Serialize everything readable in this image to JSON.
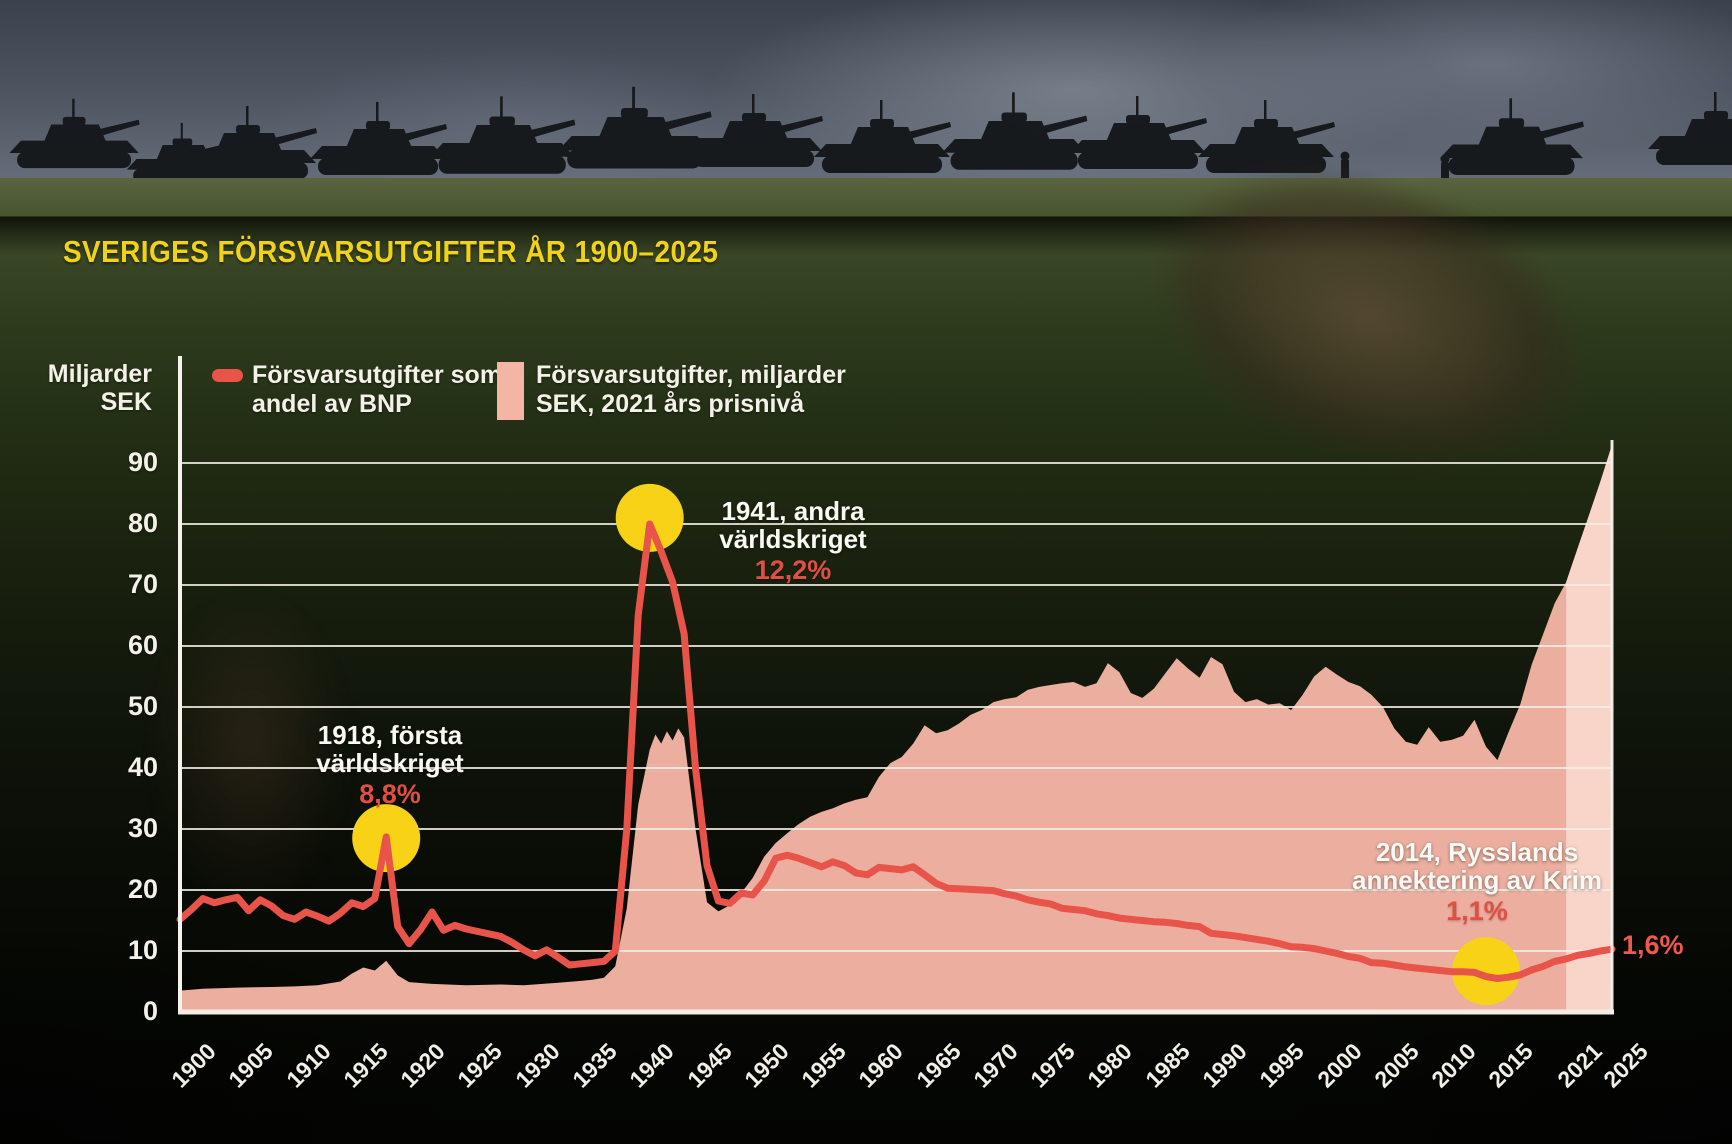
{
  "title": "SVERIGES FÖRSVARSUTGIFTER ÅR 1900–2025",
  "colors": {
    "title": "#f0d318",
    "line": "#e8544a",
    "area": "#f5b5a5",
    "area_forecast": "#fad7cb",
    "circle": "#f8d216",
    "pct_text": "#e14f44",
    "grid": "#f2efe7"
  },
  "y_axis": {
    "unit_line1": "Miljarder",
    "unit_line2": "SEK",
    "ticks": [
      0,
      10,
      20,
      30,
      40,
      50,
      60,
      70,
      80,
      90
    ]
  },
  "x_axis": {
    "ticks": [
      "1900",
      "1905",
      "1910",
      "1915",
      "1920",
      "1925",
      "1930",
      "1935",
      "1940",
      "1945",
      "1950",
      "1955",
      "1960",
      "1965",
      "1970",
      "1975",
      "1980",
      "1985",
      "1990",
      "1995",
      "2000",
      "2005",
      "2010",
      "2015",
      "2021",
      "2025"
    ]
  },
  "legend": {
    "items": [
      {
        "swatch": "line",
        "line1": "Försvarsutgifter som",
        "line2": "andel av BNP"
      },
      {
        "swatch": "area",
        "line1": "Försvarsutgifter, miljarder",
        "line2": "SEK, 2021 års prisnivå"
      }
    ]
  },
  "annotations": [
    {
      "id": "annotation-1918",
      "line1": "1918, första",
      "line2": "världskriget",
      "pct": "8,8%",
      "year": 1918,
      "circle_value": 28.5
    },
    {
      "id": "annotation-1941",
      "line1": "1941, andra",
      "line2": "världskriget",
      "pct": "12,2%",
      "year": 1941,
      "circle_value": 81
    },
    {
      "id": "annotation-2014",
      "line1": "2014, Rysslands",
      "line2": "annektering av Krim",
      "pct": "1,1%",
      "year": 2014,
      "circle_value": 6.7
    }
  ],
  "end_label": "1,6%",
  "chart_data": {
    "type": "area",
    "title": "Sveriges försvarsutgifter år 1900–2025",
    "ylabel": "Miljarder SEK",
    "xlim": [
      1900,
      2025
    ],
    "ylim": [
      0,
      94
    ],
    "grid": true,
    "legend_position": "top",
    "note": "Red line (share of GDP) is drawn on the same pixel scale as the SEK axis; labelled points: 1918=8,8%, 1941=12,2%, 2014=1,1%, 2025=1,6%",
    "series": [
      {
        "name": "Försvarsutgifter, miljarder SEK, 2021 års prisnivå",
        "type": "area",
        "color": "#f5b5a5",
        "forecast_from": 2021,
        "points": [
          [
            1900,
            3.5
          ],
          [
            1902,
            3.8
          ],
          [
            1905,
            4.0
          ],
          [
            1908,
            4.1
          ],
          [
            1910,
            4.2
          ],
          [
            1912,
            4.4
          ],
          [
            1914,
            5.0
          ],
          [
            1915,
            6.3
          ],
          [
            1916,
            7.3
          ],
          [
            1917,
            6.8
          ],
          [
            1918,
            8.4
          ],
          [
            1919,
            6.0
          ],
          [
            1920,
            4.9
          ],
          [
            1922,
            4.6
          ],
          [
            1925,
            4.4
          ],
          [
            1928,
            4.5
          ],
          [
            1930,
            4.4
          ],
          [
            1933,
            4.8
          ],
          [
            1935,
            5.1
          ],
          [
            1936,
            5.3
          ],
          [
            1937,
            5.6
          ],
          [
            1938,
            7.5
          ],
          [
            1939,
            17
          ],
          [
            1940,
            34
          ],
          [
            1941,
            43
          ],
          [
            1941.5,
            45.5
          ],
          [
            1942,
            44
          ],
          [
            1942.5,
            46
          ],
          [
            1943,
            44.5
          ],
          [
            1943.5,
            46.5
          ],
          [
            1944,
            45
          ],
          [
            1945,
            30
          ],
          [
            1946,
            18
          ],
          [
            1947,
            16.5
          ],
          [
            1948,
            17.5
          ],
          [
            1949,
            19.5
          ],
          [
            1950,
            22
          ],
          [
            1951,
            25.5
          ],
          [
            1952,
            27.7
          ],
          [
            1953,
            29.3
          ],
          [
            1954,
            30.8
          ],
          [
            1955,
            32
          ],
          [
            1956,
            32.8
          ],
          [
            1957,
            33.4
          ],
          [
            1958,
            34.2
          ],
          [
            1959,
            34.8
          ],
          [
            1960,
            35.2
          ],
          [
            1961,
            38.5
          ],
          [
            1962,
            40.8
          ],
          [
            1963,
            41.8
          ],
          [
            1964,
            44
          ],
          [
            1965,
            47
          ],
          [
            1966,
            45.7
          ],
          [
            1967,
            46.2
          ],
          [
            1968,
            47.3
          ],
          [
            1969,
            48.7
          ],
          [
            1970,
            49.5
          ],
          [
            1971,
            50.8
          ],
          [
            1972,
            51.3
          ],
          [
            1973,
            51.6
          ],
          [
            1974,
            52.8
          ],
          [
            1975,
            53.3
          ],
          [
            1976,
            53.6
          ],
          [
            1977,
            53.9
          ],
          [
            1978,
            54.1
          ],
          [
            1979,
            53.3
          ],
          [
            1980,
            53.9
          ],
          [
            1981,
            57.2
          ],
          [
            1982,
            55.7
          ],
          [
            1983,
            52.3
          ],
          [
            1984,
            51.5
          ],
          [
            1985,
            53
          ],
          [
            1986,
            55.5
          ],
          [
            1987,
            58
          ],
          [
            1988,
            56.3
          ],
          [
            1989,
            54.8
          ],
          [
            1990,
            58.2
          ],
          [
            1991,
            57
          ],
          [
            1992,
            52.5
          ],
          [
            1993,
            50.8
          ],
          [
            1994,
            51.3
          ],
          [
            1995,
            50.4
          ],
          [
            1996,
            50.6
          ],
          [
            1997,
            49.5
          ],
          [
            1998,
            52
          ],
          [
            1999,
            55
          ],
          [
            2000,
            56.6
          ],
          [
            2001,
            55.3
          ],
          [
            2002,
            54.1
          ],
          [
            2003,
            53.4
          ],
          [
            2004,
            52
          ],
          [
            2005,
            50
          ],
          [
            2006,
            46.5
          ],
          [
            2007,
            44.3
          ],
          [
            2008,
            43.8
          ],
          [
            2009,
            46.7
          ],
          [
            2010,
            44.3
          ],
          [
            2011,
            44.6
          ],
          [
            2012,
            45.3
          ],
          [
            2013,
            47.9
          ],
          [
            2014,
            43.5
          ],
          [
            2015,
            41.3
          ],
          [
            2016,
            46
          ],
          [
            2017,
            50.5
          ],
          [
            2018,
            57
          ],
          [
            2019,
            62
          ],
          [
            2020,
            67
          ],
          [
            2021,
            70.5
          ],
          [
            2022,
            76
          ],
          [
            2023,
            81.5
          ],
          [
            2024,
            87
          ],
          [
            2025,
            93
          ]
        ]
      },
      {
        "name": "Försvarsutgifter som andel av BNP",
        "type": "line",
        "color": "#e8544a",
        "points": [
          [
            1900,
            15.2
          ],
          [
            1901,
            16.8
          ],
          [
            1902,
            18.6
          ],
          [
            1903,
            17.9
          ],
          [
            1904,
            18.4
          ],
          [
            1905,
            18.8
          ],
          [
            1906,
            16.6
          ],
          [
            1907,
            18.4
          ],
          [
            1908,
            17.4
          ],
          [
            1909,
            15.8
          ],
          [
            1910,
            15.2
          ],
          [
            1911,
            16.4
          ],
          [
            1912,
            15.7
          ],
          [
            1913,
            14.9
          ],
          [
            1914,
            16.2
          ],
          [
            1915,
            17.9
          ],
          [
            1916,
            17.3
          ],
          [
            1917,
            18.6
          ],
          [
            1918,
            28.7
          ],
          [
            1919,
            14
          ],
          [
            1920,
            11.2
          ],
          [
            1921,
            13.5
          ],
          [
            1922,
            16.4
          ],
          [
            1923,
            13.4
          ],
          [
            1924,
            14.2
          ],
          [
            1925,
            13.6
          ],
          [
            1926,
            13.2
          ],
          [
            1927,
            12.8
          ],
          [
            1928,
            12.4
          ],
          [
            1929,
            11.4
          ],
          [
            1930,
            10.2
          ],
          [
            1931,
            9.2
          ],
          [
            1932,
            10.2
          ],
          [
            1933,
            9.0
          ],
          [
            1934,
            7.7
          ],
          [
            1935,
            7.9
          ],
          [
            1936,
            8.1
          ],
          [
            1937,
            8.3
          ],
          [
            1938,
            10
          ],
          [
            1939,
            30
          ],
          [
            1940,
            65
          ],
          [
            1941,
            80
          ],
          [
            1942,
            75.5
          ],
          [
            1943,
            70.5
          ],
          [
            1944,
            62
          ],
          [
            1945,
            40
          ],
          [
            1946,
            24
          ],
          [
            1947,
            18.2
          ],
          [
            1948,
            17.8
          ],
          [
            1949,
            19.5
          ],
          [
            1950,
            19.2
          ],
          [
            1951,
            21.5
          ],
          [
            1952,
            25.2
          ],
          [
            1953,
            25.7
          ],
          [
            1954,
            25.2
          ],
          [
            1955,
            24.5
          ],
          [
            1956,
            23.8
          ],
          [
            1957,
            24.6
          ],
          [
            1958,
            24.0
          ],
          [
            1959,
            22.8
          ],
          [
            1960,
            22.5
          ],
          [
            1961,
            23.7
          ],
          [
            1962,
            23.5
          ],
          [
            1963,
            23.3
          ],
          [
            1964,
            23.8
          ],
          [
            1965,
            22.5
          ],
          [
            1966,
            21.1
          ],
          [
            1967,
            20.3
          ],
          [
            1968,
            20.2
          ],
          [
            1969,
            20.1
          ],
          [
            1970,
            20.0
          ],
          [
            1971,
            19.9
          ],
          [
            1972,
            19.4
          ],
          [
            1973,
            19.0
          ],
          [
            1974,
            18.4
          ],
          [
            1975,
            18.0
          ],
          [
            1976,
            17.7
          ],
          [
            1977,
            17.0
          ],
          [
            1978,
            16.8
          ],
          [
            1979,
            16.6
          ],
          [
            1980,
            16.1
          ],
          [
            1981,
            15.8
          ],
          [
            1982,
            15.4
          ],
          [
            1983,
            15.2
          ],
          [
            1984,
            15.0
          ],
          [
            1985,
            14.8
          ],
          [
            1986,
            14.7
          ],
          [
            1987,
            14.5
          ],
          [
            1988,
            14.2
          ],
          [
            1989,
            14.0
          ],
          [
            1990,
            12.9
          ],
          [
            1991,
            12.7
          ],
          [
            1992,
            12.5
          ],
          [
            1993,
            12.2
          ],
          [
            1994,
            11.9
          ],
          [
            1995,
            11.6
          ],
          [
            1996,
            11.2
          ],
          [
            1997,
            10.7
          ],
          [
            1998,
            10.6
          ],
          [
            1999,
            10.4
          ],
          [
            2000,
            10.0
          ],
          [
            2001,
            9.6
          ],
          [
            2002,
            9.1
          ],
          [
            2003,
            8.8
          ],
          [
            2004,
            8.1
          ],
          [
            2005,
            8.0
          ],
          [
            2006,
            7.7
          ],
          [
            2007,
            7.4
          ],
          [
            2008,
            7.2
          ],
          [
            2009,
            7.0
          ],
          [
            2010,
            6.8
          ],
          [
            2011,
            6.6
          ],
          [
            2012,
            6.6
          ],
          [
            2013,
            6.5
          ],
          [
            2014,
            5.8
          ],
          [
            2015,
            5.5
          ],
          [
            2016,
            5.7
          ],
          [
            2017,
            6.1
          ],
          [
            2018,
            6.9
          ],
          [
            2019,
            7.5
          ],
          [
            2020,
            8.3
          ],
          [
            2021,
            8.7
          ],
          [
            2022,
            9.3
          ],
          [
            2023,
            9.6
          ],
          [
            2024,
            10.0
          ],
          [
            2025,
            10.3
          ]
        ]
      }
    ]
  }
}
